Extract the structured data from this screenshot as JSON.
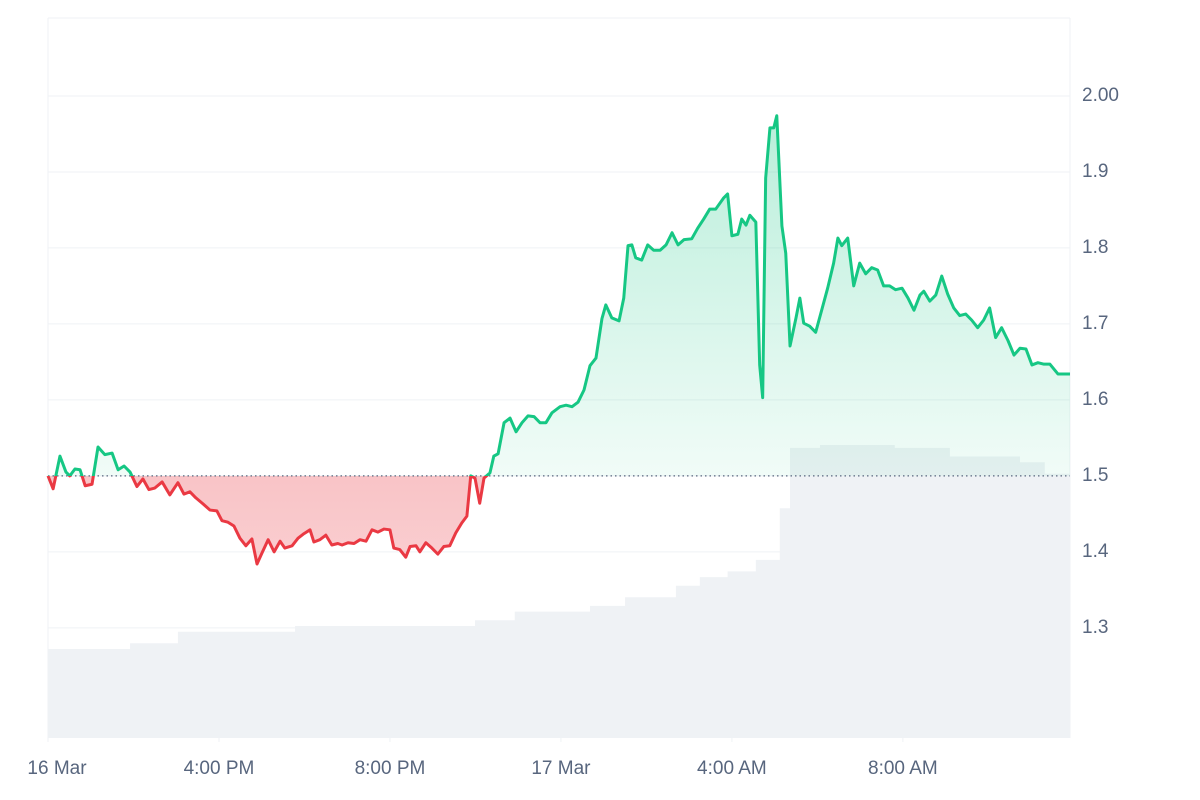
{
  "chart_data": {
    "type": "line",
    "x": [
      12.0,
      12.12,
      12.28,
      12.42,
      12.51,
      12.63,
      12.75,
      12.87,
      13.03,
      13.17,
      13.33,
      13.5,
      13.64,
      13.78,
      13.92,
      14.08,
      14.22,
      14.36,
      14.5,
      14.67,
      14.85,
      15.04,
      15.18,
      15.32,
      15.46,
      15.63,
      15.79,
      15.95,
      16.07,
      16.21,
      16.35,
      16.49,
      16.63,
      16.77,
      16.89,
      17.01,
      17.15,
      17.29,
      17.43,
      17.54,
      17.71,
      17.85,
      17.99,
      18.13,
      18.22,
      18.36,
      18.5,
      18.64,
      18.78,
      18.88,
      19.02,
      19.16,
      19.3,
      19.44,
      19.58,
      19.72,
      19.86,
      20.0,
      20.09,
      20.23,
      20.37,
      20.47,
      20.61,
      20.7,
      20.84,
      20.98,
      21.12,
      21.26,
      21.4,
      21.54,
      21.68,
      21.8,
      21.89,
      21.99,
      22.1,
      22.2,
      22.34,
      22.43,
      22.53,
      22.67,
      22.81,
      22.95,
      23.09,
      23.23,
      23.37,
      23.51,
      23.65,
      23.79,
      23.98,
      24.12,
      24.26,
      24.4,
      24.54,
      24.68,
      24.82,
      24.96,
      25.05,
      25.19,
      25.36,
      25.47,
      25.57,
      25.66,
      25.75,
      25.89,
      26.03,
      26.17,
      26.32,
      26.46,
      26.6,
      26.74,
      26.88,
      27.06,
      27.2,
      27.34,
      27.48,
      27.62,
      27.81,
      27.9,
      28.0,
      28.14,
      28.23,
      28.33,
      28.42,
      28.56,
      28.65,
      28.72,
      28.79,
      28.89,
      28.98,
      29.05,
      29.17,
      29.26,
      29.36,
      29.5,
      29.59,
      29.68,
      29.82,
      29.96,
      30.1,
      30.24,
      30.38,
      30.48,
      30.57,
      30.71,
      30.85,
      30.99,
      31.13,
      31.27,
      31.41,
      31.55,
      31.69,
      31.83,
      31.98,
      32.12,
      32.26,
      32.4,
      32.49,
      32.63,
      32.77,
      32.91,
      33.05,
      33.19,
      33.33,
      33.47,
      33.61,
      33.75,
      33.89,
      34.03,
      34.17,
      34.31,
      34.46,
      34.6,
      34.74,
      34.88,
      35.02,
      35.16,
      35.3,
      35.44,
      35.63,
      35.91
    ],
    "values": [
      1.5,
      1.483,
      1.526,
      1.505,
      1.5,
      1.509,
      1.508,
      1.487,
      1.489,
      1.538,
      1.528,
      1.53,
      1.508,
      1.513,
      1.505,
      1.486,
      1.496,
      1.482,
      1.484,
      1.492,
      1.475,
      1.491,
      1.476,
      1.479,
      1.471,
      1.463,
      1.455,
      1.454,
      1.441,
      1.439,
      1.434,
      1.418,
      1.408,
      1.417,
      1.384,
      1.399,
      1.416,
      1.4,
      1.414,
      1.405,
      1.408,
      1.418,
      1.424,
      1.429,
      1.413,
      1.416,
      1.422,
      1.409,
      1.411,
      1.409,
      1.412,
      1.411,
      1.416,
      1.414,
      1.429,
      1.426,
      1.43,
      1.429,
      1.405,
      1.403,
      1.393,
      1.407,
      1.408,
      1.4,
      1.412,
      1.405,
      1.397,
      1.407,
      1.408,
      1.425,
      1.438,
      1.447,
      1.5,
      1.497,
      1.464,
      1.497,
      1.504,
      1.526,
      1.529,
      1.57,
      1.576,
      1.558,
      1.57,
      1.579,
      1.578,
      1.57,
      1.57,
      1.583,
      1.591,
      1.593,
      1.591,
      1.597,
      1.613,
      1.645,
      1.655,
      1.707,
      1.725,
      1.708,
      1.704,
      1.734,
      1.803,
      1.804,
      1.787,
      1.784,
      1.804,
      1.797,
      1.797,
      1.804,
      1.82,
      1.804,
      1.811,
      1.812,
      1.826,
      1.838,
      1.851,
      1.851,
      1.866,
      1.871,
      1.816,
      1.818,
      1.838,
      1.83,
      1.843,
      1.834,
      1.646,
      1.603,
      1.892,
      1.958,
      1.958,
      1.974,
      1.829,
      1.793,
      1.671,
      1.708,
      1.734,
      1.701,
      1.697,
      1.689,
      1.718,
      1.747,
      1.78,
      1.813,
      1.803,
      1.813,
      1.75,
      1.78,
      1.766,
      1.774,
      1.771,
      1.75,
      1.75,
      1.745,
      1.747,
      1.734,
      1.718,
      1.738,
      1.743,
      1.73,
      1.738,
      1.763,
      1.739,
      1.721,
      1.711,
      1.713,
      1.705,
      1.695,
      1.705,
      1.721,
      1.682,
      1.695,
      1.678,
      1.659,
      1.668,
      1.667,
      1.646,
      1.649,
      1.647,
      1.647,
      1.634,
      1.634
    ],
    "color": "#16c784",
    "negative_color": "#ea3943",
    "baseline": 1.5,
    "xlim": [
      12,
      35.91
    ],
    "xticks": [
      {
        "value": 12,
        "label": "16 Mar"
      },
      {
        "value": 16,
        "label": "4:00 PM"
      },
      {
        "value": 20,
        "label": "8:00 PM"
      },
      {
        "value": 24,
        "label": "17 Mar"
      },
      {
        "value": 28,
        "label": "4:00 AM"
      },
      {
        "value": 32,
        "label": "8:00 AM"
      }
    ],
    "ylim": [
      1.155,
      2.1
    ],
    "yticks": [
      {
        "value": 2,
        "label": "2.00"
      },
      1.9,
      1.8,
      1.7,
      1.6,
      1.5,
      1.4,
      1.3
    ],
    "grid": true,
    "volume": {
      "axis": "y2",
      "color": "#eff2f5",
      "x": [
        12.0,
        13.92,
        15.04,
        17.78,
        21.99,
        22.92,
        24.68,
        25.5,
        26.69,
        27.25,
        27.9,
        28.56,
        29.12,
        29.36,
        30.06,
        31.81,
        33.1,
        34.74,
        35.32,
        35.91
      ],
      "values": [
        31,
        33,
        37,
        39,
        41,
        44,
        46,
        49,
        53,
        56,
        58,
        62,
        80,
        101,
        102,
        101,
        98,
        96,
        92,
        88
      ]
    },
    "y2lim": [
      0,
      250
    ]
  }
}
